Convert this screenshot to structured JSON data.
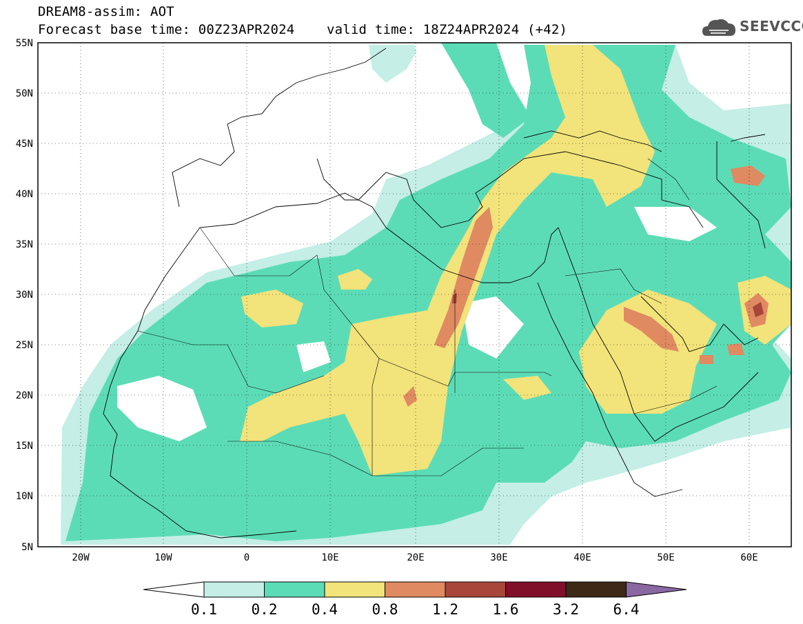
{
  "header": {
    "title_line1": "DREAM8-assim: AOT",
    "title_line2": "Forecast base time: 00Z23APR2024    valid time: 18Z24APR2024 (+42)",
    "logo_text": "SEEVCCC"
  },
  "map": {
    "projection": "lat-lon",
    "lon_range": [
      -25,
      65
    ],
    "lat_range": [
      5,
      55
    ],
    "lon_ticks": [
      "20W",
      "10W",
      "0",
      "10E",
      "20E",
      "30E",
      "40E",
      "50E",
      "60E"
    ],
    "lat_ticks": [
      "55N",
      "50N",
      "45N",
      "40N",
      "35N",
      "30N",
      "25N",
      "20N",
      "15N",
      "10N",
      "5N"
    ],
    "grid": "dotted",
    "field": "Aerosol optical thickness (dust)"
  },
  "colorbar": {
    "labels": [
      "0.1",
      "0.2",
      "0.4",
      "0.8",
      "1.2",
      "1.6",
      "3.2",
      "6.4"
    ],
    "colors": [
      "#c4eee6",
      "#5cdcb6",
      "#f2e37a",
      "#e08a62",
      "#a8463a",
      "#80102a",
      "#3e2816",
      "#8a68a2"
    ]
  }
}
